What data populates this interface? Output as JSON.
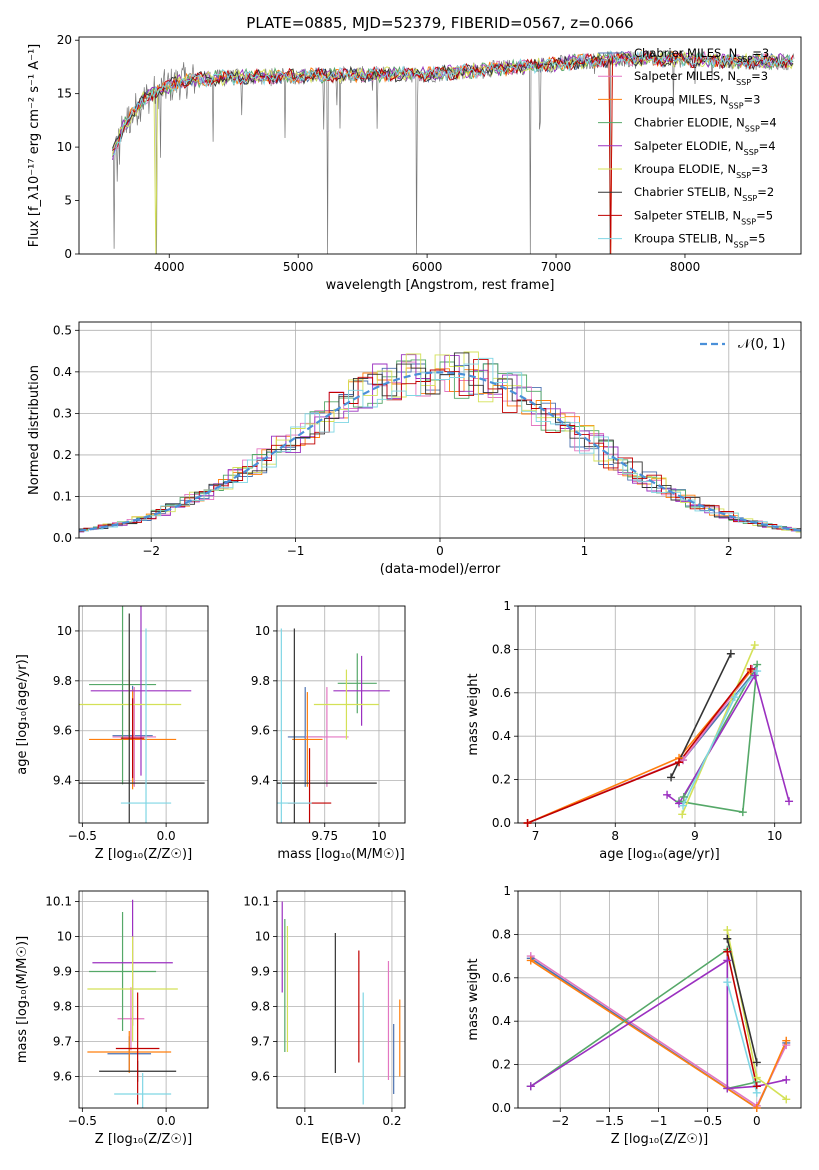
{
  "title": "PLATE=0885, MJD=52379, FIBERID=0567, z=0.066",
  "colors": {
    "chabrier_miles": "#4c72b0",
    "salpeter_miles": "#e377c2",
    "kroupa_miles": "#ff7f0e",
    "chabrier_elodie": "#55a868",
    "salpeter_elodie": "#9b30c0",
    "kroupa_elodie": "#d4e157",
    "chabrier_stelib": "#333333",
    "salpeter_stelib": "#c00000",
    "kroupa_stelib": "#7fd6e4",
    "gauss": "#4a90d9",
    "data": "#777777"
  },
  "chart_data": [
    {
      "id": "spectrum",
      "type": "line",
      "xlabel": "wavelength [Angstrom, rest frame]",
      "ylabel": "Flux [f_λ10⁻¹⁷ erg cm⁻² s⁻¹ A⁻¹]",
      "xlim": [
        3300,
        8900
      ],
      "ylim": [
        0,
        20.3
      ],
      "xticks": [
        4000,
        5000,
        6000,
        7000,
        8000
      ],
      "yticks": [
        0,
        5,
        10,
        15,
        20
      ],
      "legend": [
        "Chabrier MILES, N_SSP=3",
        "Salpeter MILES, N_SSP=3",
        "Kroupa MILES, N_SSP=3",
        "Chabrier ELODIE, N_SSP=4",
        "Salpeter ELODIE, N_SSP=4",
        "Kroupa ELODIE, N_SSP=3",
        "Chabrier STELIB, N_SSP=2",
        "Salpeter STELIB, N_SSP=5",
        "Kroupa STELIB, N_SSP=5"
      ],
      "legend_placement": "right",
      "grid": false,
      "continuum": {
        "x": [
          3550,
          3650,
          3800,
          3950,
          4100,
          4400,
          4800,
          5200,
          5600,
          6000,
          6500,
          7000,
          7500,
          8000,
          8500
        ],
        "y": [
          9,
          12,
          14.5,
          15.5,
          16.2,
          16.5,
          16.6,
          16.7,
          16.8,
          16.8,
          17.3,
          17.8,
          18.3,
          18.2,
          18.0
        ]
      },
      "features": [
        {
          "x": 3570,
          "y": 0.5
        },
        {
          "x": 3900,
          "y": 0
        },
        {
          "x": 3934,
          "y": 9
        },
        {
          "x": 4340,
          "y": 10.5
        },
        {
          "x": 5230,
          "y": 0
        },
        {
          "x": 5920,
          "y": 0
        },
        {
          "x": 6800,
          "y": 0
        },
        {
          "x": 7420,
          "y": 0
        }
      ]
    },
    {
      "id": "residuals",
      "type": "line",
      "xlabel": "(data-model)/error",
      "ylabel": "Normed distribution",
      "xlim": [
        -2.5,
        2.5
      ],
      "ylim": [
        0,
        0.52
      ],
      "xticks": [
        -2,
        -1,
        0,
        1,
        2
      ],
      "yticks": [
        0.0,
        0.1,
        0.2,
        0.3,
        0.4,
        0.5
      ],
      "grid": true,
      "legend": [
        "𝒩(0, 1)"
      ],
      "legend_placement": "top-right"
    },
    {
      "id": "age_vs_Z",
      "type": "scatter",
      "xlabel": "Z [log₁₀(Z/Z☉)]",
      "ylabel": "age  [log₁₀(age/yr)]",
      "xlim": [
        -0.52,
        0.25
      ],
      "ylim": [
        9.23,
        10.1
      ],
      "xticks": [
        -0.5,
        0.0
      ],
      "yticks": [
        9.4,
        9.6,
        9.8,
        10.0
      ],
      "grid": true,
      "points": [
        {
          "model": "chabrier_miles",
          "x": -0.2,
          "xerr": 0.12,
          "y": 9.58,
          "yerr": 0.2
        },
        {
          "model": "salpeter_miles",
          "x": -0.19,
          "xerr": 0.13,
          "y": 9.575,
          "yerr": 0.2
        },
        {
          "model": "kroupa_miles",
          "x": -0.2,
          "xerr": 0.26,
          "y": 9.565,
          "yerr": 0.2
        },
        {
          "model": "chabrier_elodie",
          "x": -0.26,
          "xerr": 0.2,
          "y": 9.785,
          "yerr": 0.4
        },
        {
          "model": "salpeter_elodie",
          "x": -0.15,
          "xerr": 0.3,
          "y": 9.76,
          "yerr": 0.34
        },
        {
          "model": "kroupa_elodie",
          "x": -0.22,
          "xerr": 0.31,
          "y": 9.705,
          "yerr": 0.14
        },
        {
          "model": "chabrier_stelib",
          "x": -0.22,
          "xerr": 0.45,
          "y": 9.39,
          "yerr": 0.68
        },
        {
          "model": "salpeter_stelib",
          "x": -0.2,
          "xerr": 0.07,
          "y": 9.57,
          "yerr": 0.16
        },
        {
          "model": "kroupa_stelib",
          "x": -0.12,
          "xerr": 0.15,
          "y": 9.31,
          "yerr": 0.7
        }
      ]
    },
    {
      "id": "age_vs_mass",
      "type": "scatter",
      "xlabel": "mass [log₁₀(M/M☉)]",
      "ylabel": "",
      "xlim": [
        9.53,
        10.12
      ],
      "ylim": [
        9.23,
        10.1
      ],
      "xticks": [
        9.75,
        10.0
      ],
      "yticks": [
        9.4,
        9.6,
        9.8,
        10.0
      ],
      "grid": true,
      "points": [
        {
          "model": "chabrier_miles",
          "x": 9.66,
          "xerr": 0.08,
          "y": 9.575,
          "yerr": 0.2
        },
        {
          "model": "salpeter_miles",
          "x": 9.76,
          "xerr": 0.1,
          "y": 9.575,
          "yerr": 0.2
        },
        {
          "model": "kroupa_miles",
          "x": 9.67,
          "xerr": 0.07,
          "y": 9.565,
          "yerr": 0.19
        },
        {
          "model": "chabrier_elodie",
          "x": 9.9,
          "xerr": 0.09,
          "y": 9.79,
          "yerr": 0.12
        },
        {
          "model": "salpeter_elodie",
          "x": 9.92,
          "xerr": 0.13,
          "y": 9.76,
          "yerr": 0.14
        },
        {
          "model": "kroupa_elodie",
          "x": 9.85,
          "xerr": 0.15,
          "y": 9.705,
          "yerr": 0.14
        },
        {
          "model": "chabrier_stelib",
          "x": 9.61,
          "xerr": 0.38,
          "y": 9.39,
          "yerr": 0.62
        },
        {
          "model": "salpeter_stelib",
          "x": 9.68,
          "xerr": 0.1,
          "y": 9.31,
          "yerr": 0.22
        },
        {
          "model": "kroupa_stelib",
          "x": 9.55,
          "xerr": 0.14,
          "y": 9.31,
          "yerr": 0.7
        }
      ]
    },
    {
      "id": "weight_vs_age",
      "type": "line",
      "xlabel": "age  [log₁₀(age/yr)]",
      "ylabel": "mass weight",
      "xlim": [
        6.78,
        10.33
      ],
      "ylim": [
        0,
        1.0
      ],
      "xticks": [
        7,
        8,
        9,
        10
      ],
      "yticks": [
        0.0,
        0.2,
        0.4,
        0.6,
        0.8,
        1.0
      ],
      "grid": true,
      "series": [
        {
          "model": "chabrier_miles",
          "x": [
            6.9,
            8.85,
            9.75
          ],
          "y": [
            0.0,
            0.29,
            0.7
          ]
        },
        {
          "model": "salpeter_miles",
          "x": [
            6.9,
            8.85,
            9.72
          ],
          "y": [
            0.0,
            0.29,
            0.71
          ]
        },
        {
          "model": "kroupa_miles",
          "x": [
            6.9,
            8.8,
            9.7
          ],
          "y": [
            0.0,
            0.3,
            0.7
          ]
        },
        {
          "model": "chabrier_elodie",
          "x": [
            8.8,
            9.6,
            9.78,
            8.86
          ],
          "y": [
            0.1,
            0.05,
            0.73,
            0.12
          ]
        },
        {
          "model": "salpeter_elodie",
          "x": [
            8.65,
            8.8,
            9.75,
            10.18
          ],
          "y": [
            0.13,
            0.09,
            0.68,
            0.1
          ]
        },
        {
          "model": "kroupa_elodie",
          "x": [
            8.84,
            9.75
          ],
          "y": [
            0.04,
            0.82
          ]
        },
        {
          "model": "chabrier_stelib",
          "x": [
            8.7,
            9.45
          ],
          "y": [
            0.21,
            0.78
          ]
        },
        {
          "model": "salpeter_stelib",
          "x": [
            6.9,
            8.8,
            9.7
          ],
          "y": [
            0.0,
            0.28,
            0.71
          ]
        },
        {
          "model": "kroupa_stelib",
          "x": [
            8.85,
            9.5,
            9.78
          ],
          "y": [
            0.08,
            0.58,
            0.7
          ]
        }
      ]
    },
    {
      "id": "mass_vs_Z",
      "type": "scatter",
      "xlabel": "Z [log₁₀(Z/Z☉)]",
      "ylabel": "mass [log₁₀(M/M☉)]",
      "xlim": [
        -0.52,
        0.25
      ],
      "ylim": [
        9.51,
        10.13
      ],
      "xticks": [
        -0.5,
        0.0
      ],
      "yticks": [
        9.6,
        9.7,
        9.8,
        9.9,
        10.0,
        10.1
      ],
      "grid": true,
      "points": [
        {
          "model": "chabrier_miles",
          "x": -0.22,
          "xerr": 0.13,
          "y": 9.665,
          "yerr": 0.05
        },
        {
          "model": "salpeter_miles",
          "x": -0.21,
          "xerr": 0.08,
          "y": 9.765,
          "yerr": 0.09
        },
        {
          "model": "kroupa_miles",
          "x": -0.22,
          "xerr": 0.25,
          "y": 9.67,
          "yerr": 0.06
        },
        {
          "model": "chabrier_elodie",
          "x": -0.26,
          "xerr": 0.2,
          "y": 9.9,
          "yerr": 0.17
        },
        {
          "model": "salpeter_elodie",
          "x": -0.2,
          "xerr": 0.24,
          "y": 9.925,
          "yerr": 0.18
        },
        {
          "model": "kroupa_elodie",
          "x": -0.2,
          "xerr": 0.27,
          "y": 9.85,
          "yerr": 0.15
        },
        {
          "model": "chabrier_stelib",
          "x": -0.17,
          "xerr": 0.23,
          "y": 9.615,
          "yerr": 0.03
        },
        {
          "model": "salpeter_stelib",
          "x": -0.17,
          "xerr": 0.13,
          "y": 9.68,
          "yerr": 0.16
        },
        {
          "model": "kroupa_stelib",
          "x": -0.14,
          "xerr": 0.17,
          "y": 9.55,
          "yerr": 0.06
        }
      ]
    },
    {
      "id": "mass_vs_ebv",
      "type": "scatter",
      "xlabel": "E(B-V)",
      "ylabel": "",
      "xlim": [
        0.068,
        0.215
      ],
      "ylim": [
        9.51,
        10.13
      ],
      "xticks": [
        0.1,
        0.2
      ],
      "yticks": [
        9.6,
        9.7,
        9.8,
        9.9,
        10.0,
        10.1
      ],
      "grid": true,
      "points": [
        {
          "model": "chabrier_miles",
          "x": 0.202,
          "y": 9.65,
          "yerr": 0.1
        },
        {
          "model": "salpeter_miles",
          "x": 0.196,
          "y": 9.76,
          "yerr": 0.17
        },
        {
          "model": "kroupa_miles",
          "x": 0.209,
          "y": 9.71,
          "yerr": 0.11
        },
        {
          "model": "chabrier_elodie",
          "x": 0.077,
          "y": 9.86,
          "yerr": 0.19
        },
        {
          "model": "salpeter_elodie",
          "x": 0.074,
          "y": 9.97,
          "yerr": 0.13
        },
        {
          "model": "kroupa_elodie",
          "x": 0.08,
          "y": 9.85,
          "yerr": 0.18
        },
        {
          "model": "chabrier_stelib",
          "x": 0.135,
          "y": 9.81,
          "yerr": 0.2
        },
        {
          "model": "salpeter_stelib",
          "x": 0.162,
          "y": 9.8,
          "yerr": 0.16
        },
        {
          "model": "kroupa_stelib",
          "x": 0.167,
          "y": 9.68,
          "yerr": 0.16
        }
      ]
    },
    {
      "id": "weight_vs_Z",
      "type": "line",
      "xlabel": "Z [log₁₀(Z/Z☉)]",
      "ylabel": "mass weight",
      "xlim": [
        -2.43,
        0.45
      ],
      "ylim": [
        0,
        1.0
      ],
      "xticks": [
        -2.0,
        -1.5,
        -1.0,
        -0.5,
        0.0
      ],
      "yticks": [
        0.0,
        0.2,
        0.4,
        0.6,
        0.8,
        1.0
      ],
      "grid": true,
      "series": [
        {
          "model": "chabrier_miles",
          "x": [
            -2.3,
            0.0,
            0.3
          ],
          "y": [
            0.69,
            0.0,
            0.3
          ]
        },
        {
          "model": "salpeter_miles",
          "x": [
            -2.3,
            0.0,
            0.3
          ],
          "y": [
            0.7,
            0.01,
            0.29
          ]
        },
        {
          "model": "kroupa_miles",
          "x": [
            -2.3,
            0.0,
            0.3
          ],
          "y": [
            0.68,
            0.0,
            0.31
          ]
        },
        {
          "model": "chabrier_elodie",
          "x": [
            -2.3,
            -0.3,
            -0.3,
            0.0
          ],
          "y": [
            0.1,
            0.73,
            0.09,
            0.12
          ]
        },
        {
          "model": "salpeter_elodie",
          "x": [
            -2.3,
            -0.3,
            -0.3,
            0.0,
            0.3
          ],
          "y": [
            0.1,
            0.68,
            0.09,
            0.1,
            0.13
          ]
        },
        {
          "model": "kroupa_elodie",
          "x": [
            -0.3,
            0.0,
            0.3
          ],
          "y": [
            0.82,
            0.14,
            0.04
          ]
        },
        {
          "model": "chabrier_stelib",
          "x": [
            -0.3,
            0.0
          ],
          "y": [
            0.78,
            0.21
          ]
        },
        {
          "model": "salpeter_stelib",
          "x": [
            -0.3,
            0.0
          ],
          "y": [
            0.72,
            0.1
          ]
        },
        {
          "model": "kroupa_stelib",
          "x": [
            -0.3,
            0.0
          ],
          "y": [
            0.58,
            0.07
          ]
        }
      ]
    }
  ]
}
